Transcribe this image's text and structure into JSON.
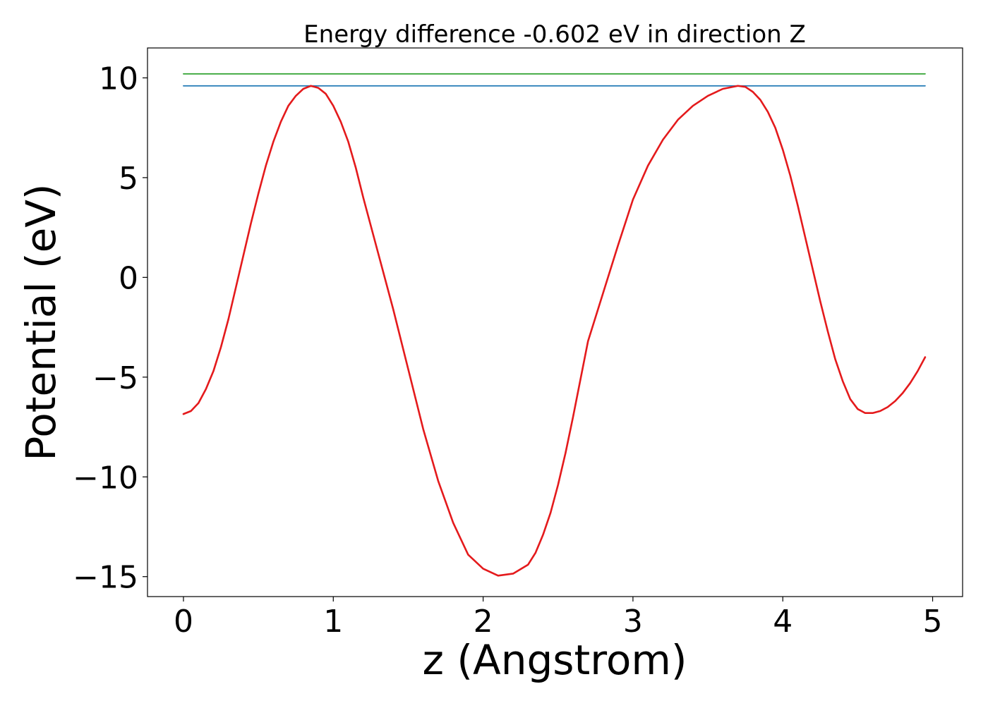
{
  "chart_data": {
    "type": "line",
    "title": "Energy difference -0.602 eV in direction Z",
    "xlabel": "z (Angstrom)",
    "ylabel": "Potential (eV)",
    "xlim": [
      -0.24,
      5.2
    ],
    "ylim": [
      -16.0,
      11.5
    ],
    "grid": false,
    "legend": "none",
    "x_ticks": [
      {
        "value": 0,
        "label": "0"
      },
      {
        "value": 1,
        "label": "1"
      },
      {
        "value": 2,
        "label": "2"
      },
      {
        "value": 3,
        "label": "3"
      },
      {
        "value": 4,
        "label": "4"
      },
      {
        "value": 5,
        "label": "5"
      }
    ],
    "y_ticks": [
      {
        "value": 10,
        "label": "10"
      },
      {
        "value": 5,
        "label": "5"
      },
      {
        "value": 0,
        "label": "0"
      },
      {
        "value": -5,
        "label": "−5"
      },
      {
        "value": -10,
        "label": "−10"
      },
      {
        "value": -15,
        "label": "−15"
      }
    ],
    "series": [
      {
        "color": "#2ca02c",
        "x": [
          0.0,
          4.95
        ],
        "y": [
          10.2,
          10.2
        ]
      },
      {
        "color": "#1f77b4",
        "x": [
          0.0,
          4.95
        ],
        "y": [
          9.6,
          9.6
        ]
      },
      {
        "color": "#e41a1c",
        "x": [
          0.0,
          0.05,
          0.1,
          0.15,
          0.2,
          0.25,
          0.3,
          0.35,
          0.4,
          0.45,
          0.5,
          0.55,
          0.6,
          0.65,
          0.7,
          0.75,
          0.8,
          0.85,
          0.9,
          0.95,
          1.0,
          1.05,
          1.1,
          1.15,
          1.2,
          1.3,
          1.4,
          1.5,
          1.6,
          1.7,
          1.8,
          1.9,
          2.0,
          2.1,
          2.2,
          2.3,
          2.35,
          2.4,
          2.45,
          2.5,
          2.55,
          2.6,
          2.65,
          2.7,
          2.8,
          2.9,
          3.0,
          3.1,
          3.2,
          3.3,
          3.4,
          3.5,
          3.6,
          3.7,
          3.75,
          3.8,
          3.85,
          3.9,
          3.95,
          4.0,
          4.05,
          4.1,
          4.15,
          4.2,
          4.25,
          4.3,
          4.35,
          4.4,
          4.45,
          4.5,
          4.55,
          4.6,
          4.65,
          4.7,
          4.75,
          4.8,
          4.85,
          4.9,
          4.95
        ],
        "y": [
          -6.85,
          -6.7,
          -6.3,
          -5.6,
          -4.7,
          -3.5,
          -2.1,
          -0.5,
          1.1,
          2.7,
          4.2,
          5.6,
          6.8,
          7.8,
          8.6,
          9.1,
          9.45,
          9.6,
          9.5,
          9.2,
          8.6,
          7.8,
          6.8,
          5.5,
          4.0,
          1.2,
          -1.6,
          -4.6,
          -7.6,
          -10.2,
          -12.3,
          -13.9,
          -14.6,
          -14.95,
          -14.85,
          -14.4,
          -13.8,
          -12.9,
          -11.8,
          -10.4,
          -8.8,
          -7.0,
          -5.1,
          -3.2,
          -0.8,
          1.6,
          3.9,
          5.6,
          6.9,
          7.9,
          8.6,
          9.1,
          9.45,
          9.6,
          9.55,
          9.3,
          8.9,
          8.3,
          7.5,
          6.4,
          5.1,
          3.6,
          2.0,
          0.4,
          -1.2,
          -2.7,
          -4.1,
          -5.2,
          -6.1,
          -6.6,
          -6.8,
          -6.8,
          -6.7,
          -6.5,
          -6.2,
          -5.8,
          -5.3,
          -4.7,
          -4.0
        ]
      }
    ]
  }
}
